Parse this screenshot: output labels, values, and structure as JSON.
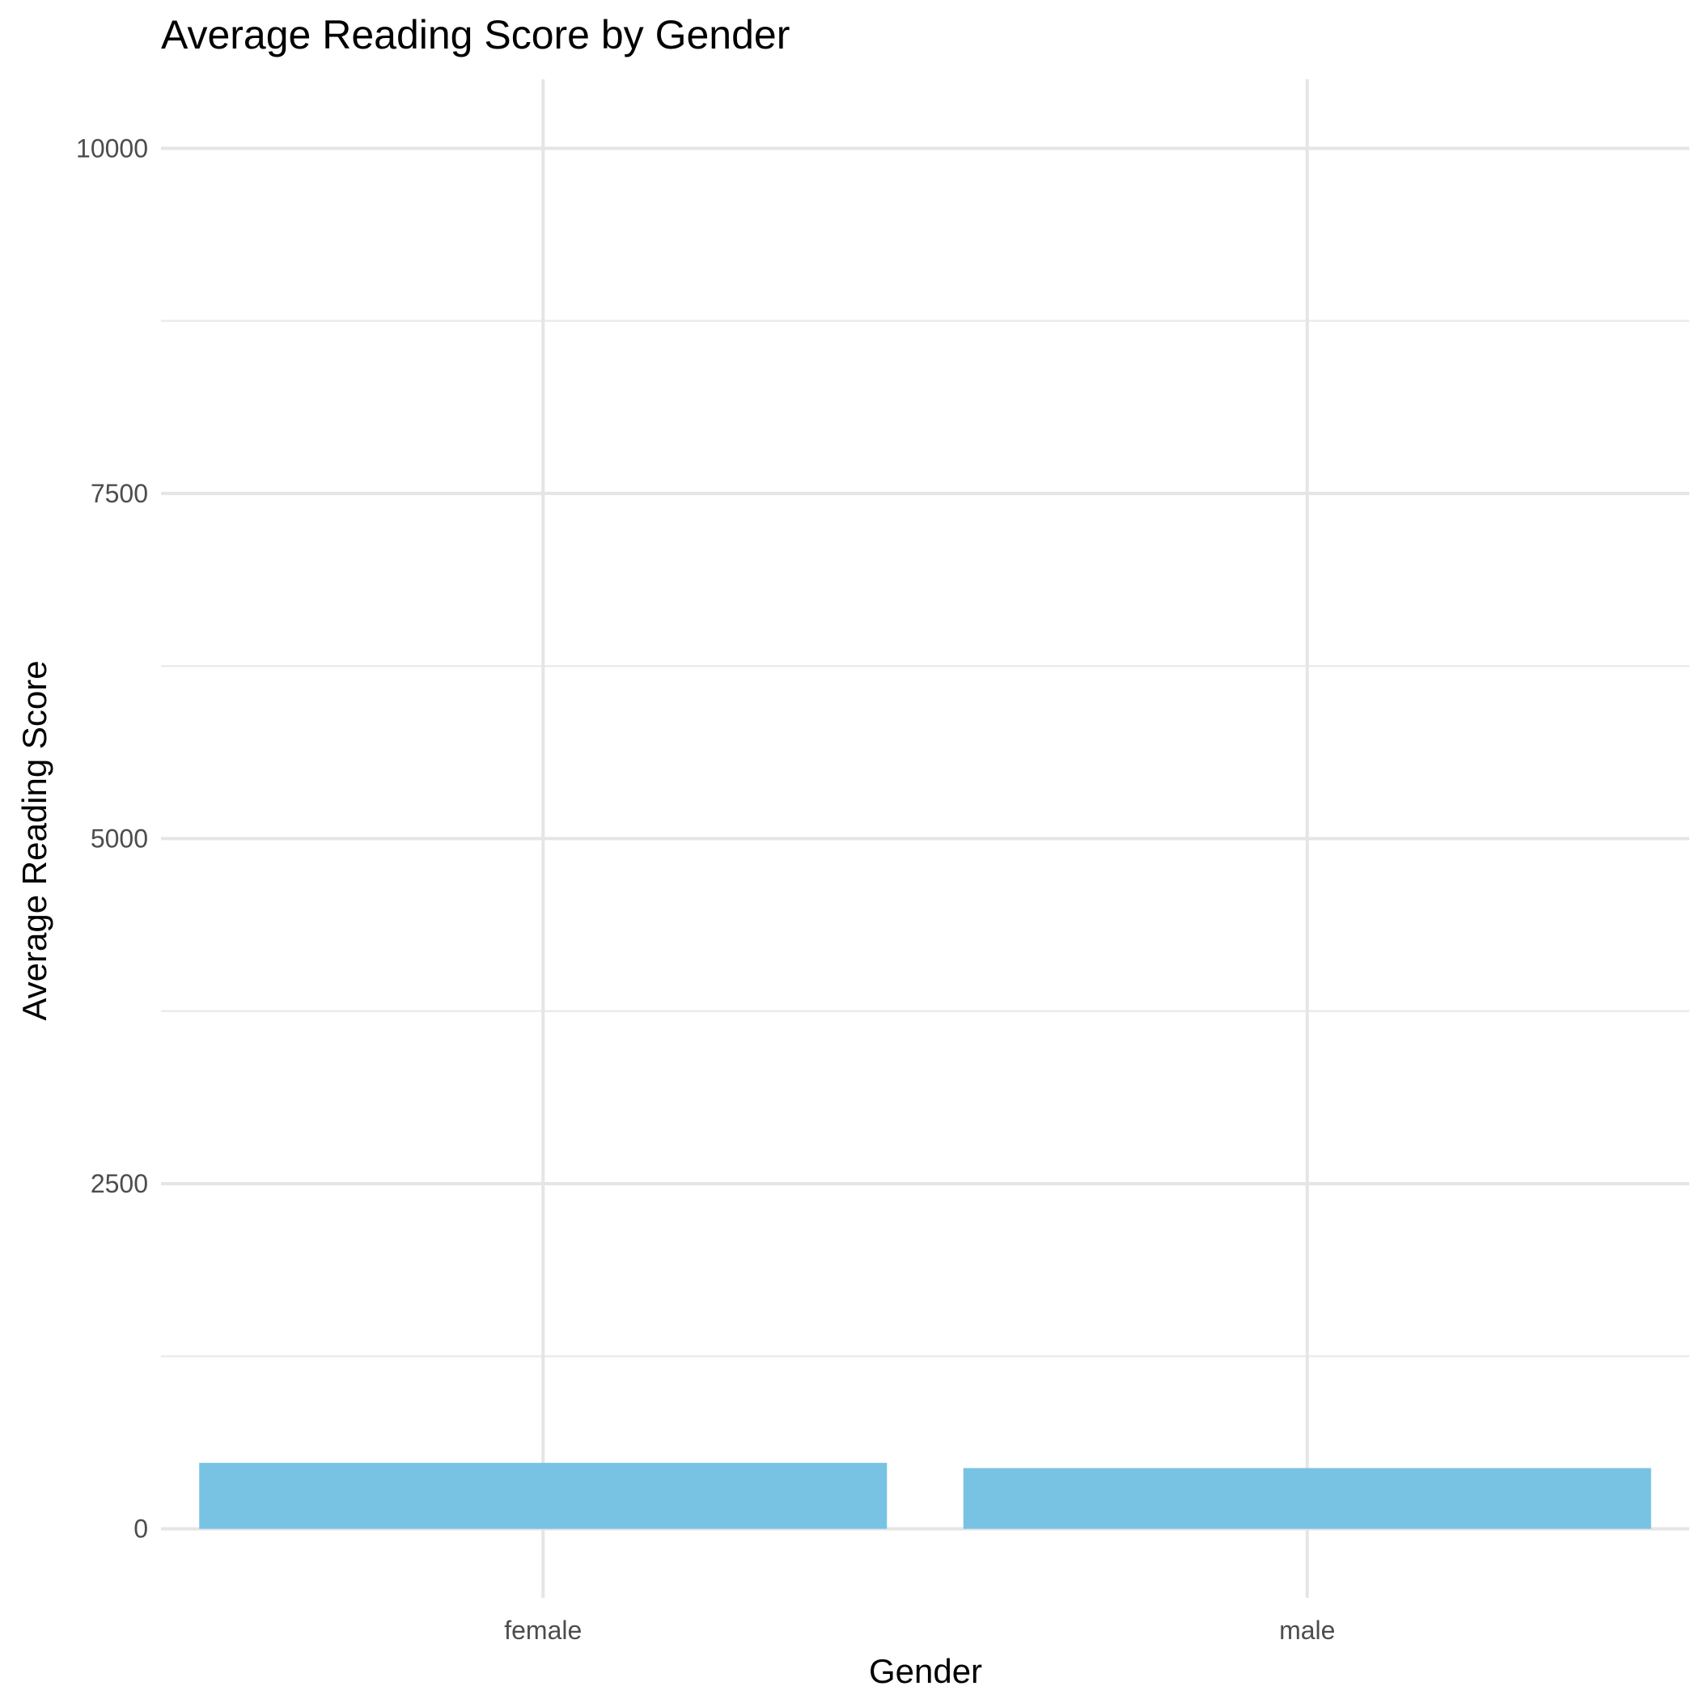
{
  "chart_data": {
    "type": "bar",
    "title": "Average Reading Score by Gender",
    "xlabel": "Gender",
    "ylabel": "Average Reading Score",
    "categories": [
      "female",
      "male"
    ],
    "values": [
      478,
      440
    ],
    "ylim": [
      -500,
      10500
    ],
    "yticks": [
      0,
      2500,
      5000,
      7500,
      10000
    ],
    "ytick_labels": [
      "0",
      "2500",
      "5000",
      "7500",
      "10000"
    ],
    "grid": true,
    "legend": "none",
    "bar_color": "#78C2E4"
  }
}
